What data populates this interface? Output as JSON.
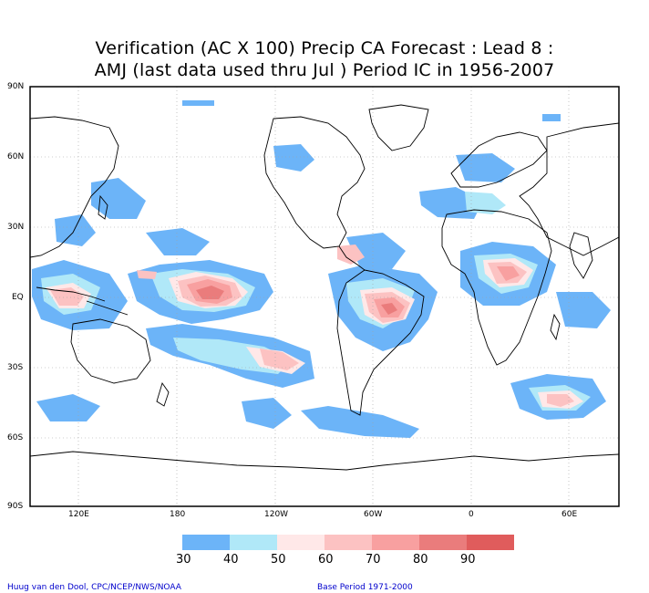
{
  "title": {
    "line1": "Verification (AC X 100) Precip CA Forecast : Lead 8 :",
    "line2": "AMJ (last data used thru Jul ) Period IC in 1956-2007"
  },
  "axes": {
    "lat_labels": [
      "90N",
      "60N",
      "30N",
      "EQ",
      "30S",
      "60S",
      "90S"
    ],
    "lon_labels": [
      "120E",
      "180",
      "120W",
      "60W",
      "0",
      "60E"
    ]
  },
  "legend": {
    "colors": [
      "#6cb4f8",
      "#b0e8f8",
      "#ffe8e8",
      "#fcc2c2",
      "#f8a0a0",
      "#ea7c7c",
      "#e05c5c"
    ],
    "labels": [
      "30",
      "40",
      "50",
      "60",
      "70",
      "80",
      "90"
    ]
  },
  "footer": {
    "left": "Huug van den Dool, CPC/NCEP/NWS/NOAA",
    "right": "Base Period 1971-2000"
  },
  "colors": {
    "frame": "#000000",
    "grid": "#a0a0a0",
    "coast": "#000000",
    "footer_text": "#0000cc"
  }
}
